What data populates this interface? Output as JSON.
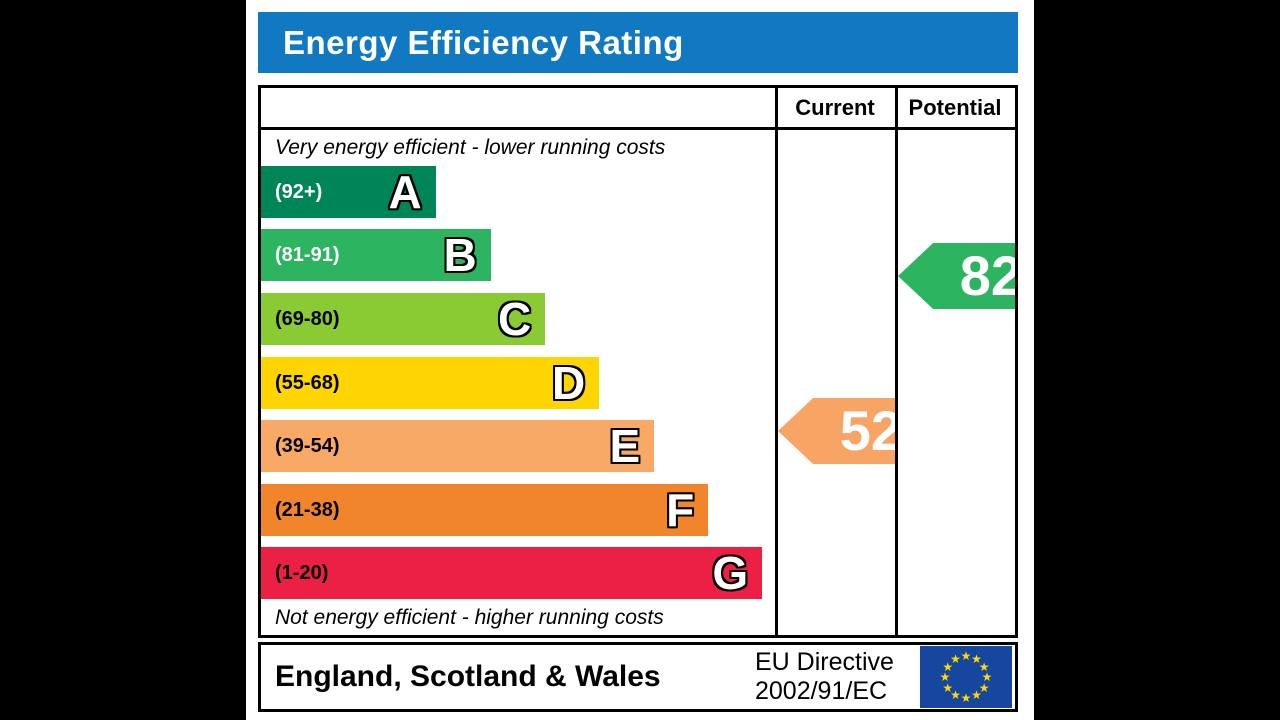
{
  "title": "Energy Efficiency Rating",
  "columns": {
    "current": "Current",
    "potential": "Potential"
  },
  "captions": {
    "top": "Very energy efficient - lower running costs",
    "bottom": "Not energy efficient - higher running costs"
  },
  "bands": [
    {
      "letter": "A",
      "range": "(92+)",
      "color": "#008558",
      "label_color": "#ffffff",
      "width_pct": 34.0
    },
    {
      "letter": "B",
      "range": "(81-91)",
      "color": "#2db460",
      "label_color": "#ffffff",
      "width_pct": 44.7
    },
    {
      "letter": "C",
      "range": "(69-80)",
      "color": "#8aca32",
      "label_color": "#000000",
      "width_pct": 55.3
    },
    {
      "letter": "D",
      "range": "(55-68)",
      "color": "#fed500",
      "label_color": "#000000",
      "width_pct": 65.8
    },
    {
      "letter": "E",
      "range": "(39-54)",
      "color": "#f8a965",
      "label_color": "#000000",
      "width_pct": 76.5
    },
    {
      "letter": "F",
      "range": "(21-38)",
      "color": "#f1852c",
      "label_color": "#000000",
      "width_pct": 87.0
    },
    {
      "letter": "G",
      "range": "(1-20)",
      "color": "#ec2044",
      "label_color": "#000000",
      "width_pct": 97.5
    }
  ],
  "ratings": {
    "current": {
      "value": "52",
      "band": "E",
      "color": "#f8a465"
    },
    "potential": {
      "value": "82",
      "band": "B",
      "color": "#2db460"
    }
  },
  "footer": {
    "region": "England, Scotland & Wales",
    "directive_line1": "EU Directive",
    "directive_line2": "2002/91/EC",
    "eu_flag": {
      "bg": "#17469e",
      "star": "#ffd900"
    }
  },
  "colors": {
    "title_bar": "#1079c2",
    "border": "#000000"
  },
  "chart_data": {
    "type": "bar",
    "title": "Energy Efficiency Rating",
    "categories": [
      "A",
      "B",
      "C",
      "D",
      "E",
      "F",
      "G"
    ],
    "band_ranges": [
      "(92+)",
      "(81-91)",
      "(69-80)",
      "(55-68)",
      "(39-54)",
      "(21-38)",
      "(1-20)"
    ],
    "band_colors": [
      "#008558",
      "#2db460",
      "#8aca32",
      "#fed500",
      "#f8a965",
      "#f1852c",
      "#ec2044"
    ],
    "bar_width_pct": [
      34.0,
      44.7,
      55.3,
      65.8,
      76.5,
      87.0,
      97.5
    ],
    "series": [
      {
        "name": "Current",
        "value": 52,
        "band": "E"
      },
      {
        "name": "Potential",
        "value": 82,
        "band": "B"
      }
    ],
    "value_scale": [
      1,
      100
    ],
    "annotations": [
      "Very energy efficient - lower running costs",
      "Not energy efficient - higher running costs",
      "England, Scotland & Wales",
      "EU Directive 2002/91/EC"
    ]
  }
}
